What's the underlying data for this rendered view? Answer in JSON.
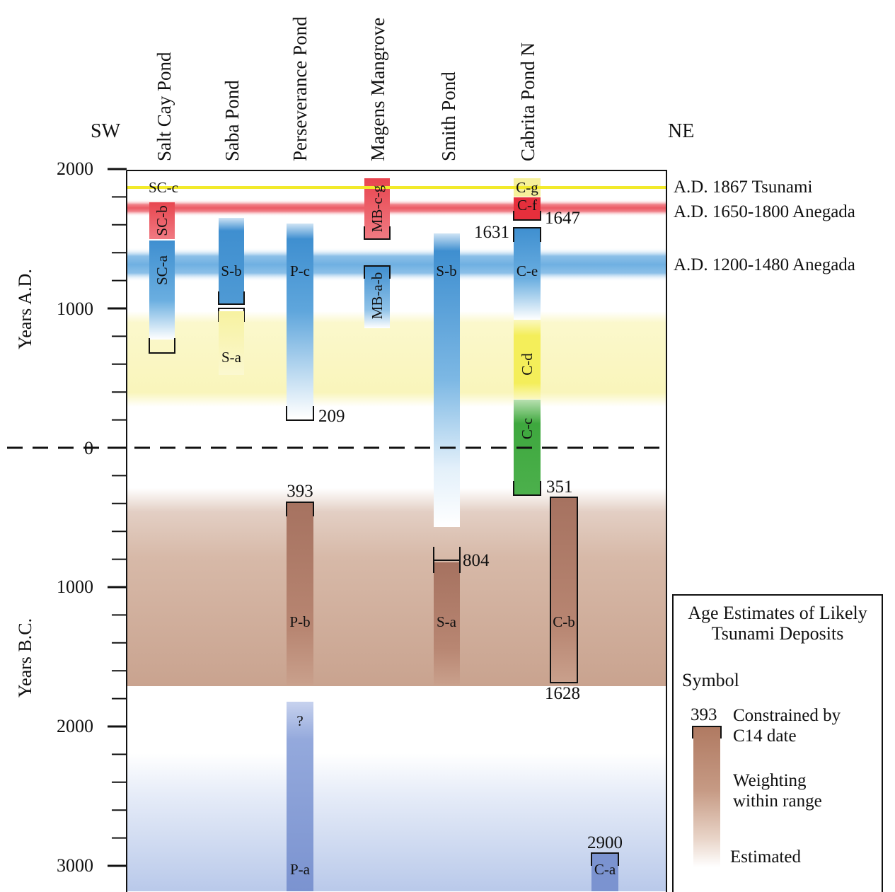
{
  "directions": {
    "left": "SW",
    "right": "NE"
  },
  "columns": [
    {
      "label": "Salt Cay Pond"
    },
    {
      "label": "Saba Pond"
    },
    {
      "label": "Perseverance Pond"
    },
    {
      "label": "Magens Mangrove"
    },
    {
      "label": "Smith Pond"
    },
    {
      "label": "Cabrita Pond N"
    }
  ],
  "axis": {
    "ad_label": "Years A.D.",
    "bc_label": "Years  B.C.",
    "ticks": [
      {
        "text": "2000",
        "year": 2000
      },
      {
        "text": "1000",
        "year": 1000
      },
      {
        "text": "0",
        "year": 0
      },
      {
        "text": "1000",
        "year": -1000
      },
      {
        "text": "2000",
        "year": -2000
      },
      {
        "text": "3000",
        "year": -3000
      }
    ]
  },
  "events": [
    {
      "label": "A.D. 1867 Tsunami",
      "year": 1867,
      "color": "#f2ea2a"
    },
    {
      "label": "A.D. 1650-1800 Anegada",
      "year": 1725,
      "color": "#e8454f"
    },
    {
      "label": "A.D. 1200-1480 Anegada",
      "year": 1340,
      "color": "#4f9ad4"
    }
  ],
  "deposits": [
    {
      "label": "SC-c",
      "from": 1867,
      "to": 1867,
      "color": "#f2ea2a",
      "rotated": false
    },
    {
      "label": "SC-b",
      "from": 1800,
      "to": 1500,
      "color": "#e8454f",
      "rotated": true
    },
    {
      "label": "SC-a",
      "from": 1500,
      "to": 700,
      "color": "#4f9ad4",
      "rotated": true
    },
    {
      "label": "S-b",
      "from": 1620,
      "to": 1020,
      "color": "#4f9ad4",
      "rotated": false
    },
    {
      "label": "S-a",
      "from": 960,
      "to": 400,
      "color": "#f2ea2a",
      "rotated": false
    },
    {
      "label": "P-c",
      "from": 1580,
      "to": 209,
      "color": "#4f9ad4",
      "rotated": false
    },
    {
      "label": "P-b",
      "from": -393,
      "to": -1700,
      "color": "#a57560",
      "rotated": false
    },
    {
      "label": "?",
      "from": -1830,
      "to": -3150,
      "color": "#7b96d0",
      "rotated": false
    },
    {
      "label": "P-a",
      "from": -1830,
      "to": -3150,
      "color": "#7b96d0",
      "rotated": false
    },
    {
      "label": "MB-c-g",
      "from": 1900,
      "to": 1500,
      "color": "#e8454f",
      "rotated": true
    },
    {
      "label": "MB-a-b",
      "from": 1300,
      "to": 900,
      "color": "#4f9ad4",
      "rotated": true
    },
    {
      "label": "S-b",
      "from": 1500,
      "to": -550,
      "color": "#4f9ad4",
      "rotated": false
    },
    {
      "label": "S-a",
      "from": -804,
      "to": -1700,
      "color": "#a57560",
      "rotated": false
    },
    {
      "label": "C-g",
      "from": 1900,
      "to": 1840,
      "color": "#f2ea2a",
      "rotated": false
    },
    {
      "label": "C-f",
      "from": 1800,
      "to": 1647,
      "color": "#e8454f",
      "rotated": false
    },
    {
      "label": "C-e",
      "from": 1631,
      "to": 900,
      "color": "#4f9ad4",
      "rotated": false
    },
    {
      "label": "C-d",
      "from": 900,
      "to": 400,
      "color": "#f2ea2a",
      "rotated": true
    },
    {
      "label": "C-c",
      "from": 320,
      "to": -351,
      "color": "#3ea83e",
      "rotated": true
    },
    {
      "label": "C-b",
      "from": -351,
      "to": -1628,
      "color": "#a57560",
      "rotated": false
    },
    {
      "label": "C-a",
      "from": -2900,
      "to": -3150,
      "color": "#7b96d0",
      "rotated": false
    }
  ],
  "date_labels": [
    {
      "text": "1647",
      "year": 1647
    },
    {
      "text": "1631",
      "year": 1631
    },
    {
      "text": "209",
      "year": 209
    },
    {
      "text": "393",
      "year": -393
    },
    {
      "text": "351",
      "year": -351
    },
    {
      "text": "804",
      "year": -804
    },
    {
      "text": "1628",
      "year": -1628
    },
    {
      "text": "2900",
      "year": -2900
    }
  ],
  "background_bands": [
    {
      "from": 960,
      "to": 330,
      "color": "#f2ea2a"
    },
    {
      "from": -320,
      "to": -1700,
      "color": "#a57560"
    },
    {
      "from": -2200,
      "to": -3200,
      "color": "#7b96d0"
    }
  ],
  "legend": {
    "title_line1": "Age Estimates of Likely",
    "title_line2": "Tsunami Deposits",
    "symbol_heading": "Symbol",
    "example_date": "393",
    "constrained_line1": "Constrained by",
    "constrained_line2": "C14 date",
    "weighting_line1": "Weighting",
    "weighting_line2": "within range",
    "estimated": "Estimated"
  }
}
